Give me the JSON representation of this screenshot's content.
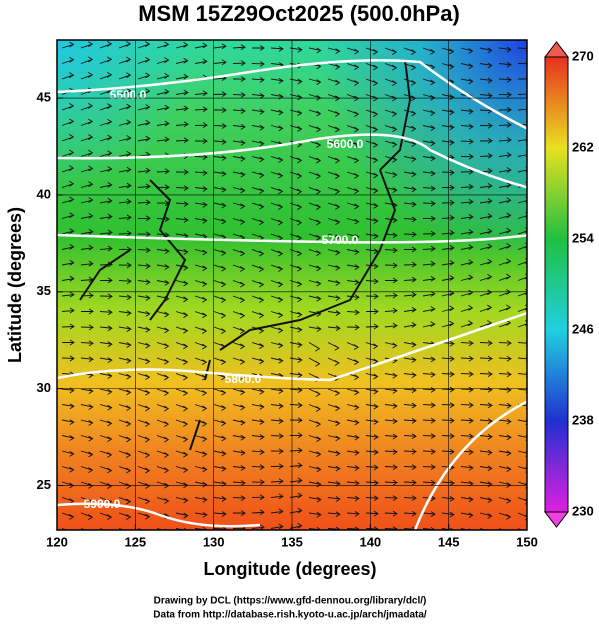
{
  "map": {
    "title": "MSM 15Z29Oct2025 (500.0hPa)",
    "xlabel": "Longitude (degrees)",
    "ylabel": "Latitude  (degrees)",
    "xlim": [
      120,
      150
    ],
    "ylim": [
      22.7,
      48
    ],
    "xticks": [
      120,
      125,
      130,
      135,
      140,
      145,
      150
    ],
    "yticks": [
      25,
      30,
      35,
      40,
      45
    ],
    "colorbar": {
      "lim": [
        230,
        270
      ],
      "ticks": [
        230,
        238,
        246,
        254,
        262,
        270
      ]
    },
    "contours": [
      {
        "value": 5500,
        "label": "5500.0"
      },
      {
        "value": 5600,
        "label": "5600.0"
      },
      {
        "value": 5700,
        "label": "5700.0"
      },
      {
        "value": 5800,
        "label": "5800.0"
      },
      {
        "value": 5900,
        "label": "5900.0"
      }
    ],
    "credits": [
      "Drawing by DCL (https://www.gfd-dennou.org/library/dcl/)",
      "Data from http://database.rish.kyoto-u.ac.jp/arch/jmadata/"
    ]
  }
}
